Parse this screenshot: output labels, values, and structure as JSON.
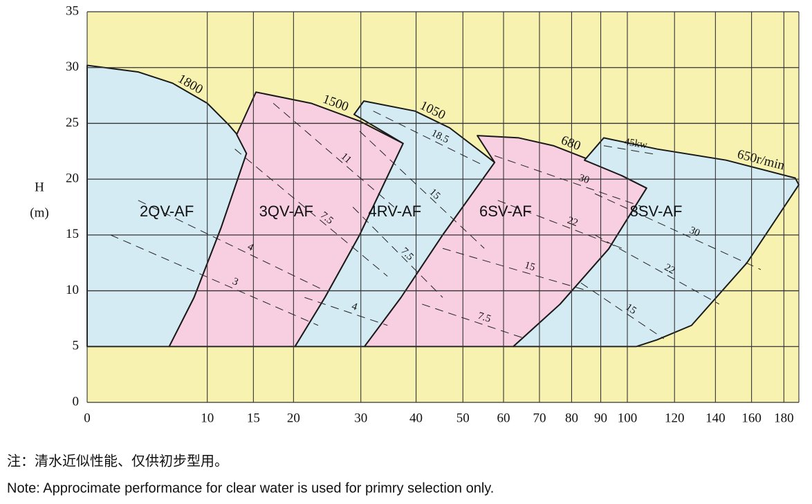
{
  "chart_data": {
    "type": "area",
    "y_label": "H",
    "y_unit": "(m)",
    "xlim": [
      0,
      190
    ],
    "ylim": [
      0,
      35
    ],
    "xticks": [
      0,
      10,
      15,
      20,
      30,
      40,
      50,
      60,
      70,
      80,
      90,
      100,
      120,
      140,
      160,
      180
    ],
    "yticks": [
      0,
      5,
      10,
      15,
      20,
      25,
      30,
      35
    ],
    "grid": true,
    "background": "#f8f2b0",
    "series": [
      {
        "name": "2QV-AF",
        "speed": "1800",
        "color": "#d5ebf3",
        "x": [
          0,
          3.8,
          6.7,
          10,
          12.2,
          13.8,
          14.2,
          11.4,
          8.7,
          6.4,
          0
        ],
        "y": [
          30.2,
          29.6,
          28.6,
          26.8,
          24.9,
          23.4,
          22.3,
          15.6,
          9.4,
          5,
          5
        ]
      },
      {
        "name": "3QV-AF",
        "speed": "1500",
        "color": "#f8cfe0",
        "x": [
          13.1,
          15.3,
          22.4,
          29.8,
          37.5,
          29.8,
          24.4,
          20.2,
          6.4,
          8.7,
          11.4,
          14.2
        ],
        "y": [
          24.0,
          27.8,
          26.8,
          25.2,
          23.2,
          15.0,
          9.4,
          5,
          5,
          9.4,
          15.6,
          22.3
        ]
      },
      {
        "name": "4RV-AF",
        "speed": "1050",
        "color": "#d5ebf3",
        "x": [
          28.9,
          30.5,
          39.8,
          47.0,
          53.4,
          57.7,
          45.5,
          37.1,
          30.6,
          20.2,
          24.4,
          29.8,
          37.5
        ],
        "y": [
          25.8,
          27.0,
          26.1,
          24.6,
          22.7,
          21.5,
          15.0,
          9.4,
          5,
          5,
          9.4,
          15.0,
          23.2
        ]
      },
      {
        "name": "6SV-AF",
        "speed": "680",
        "color": "#f8cfe0",
        "x": [
          53.4,
          64.1,
          74.2,
          85.4,
          98,
          107.8,
          92.9,
          76.3,
          62.6,
          30.6,
          37.1,
          45.5,
          57.7
        ],
        "y": [
          23.9,
          23.7,
          23.0,
          21.8,
          20.3,
          19.2,
          13.75,
          8.8,
          5,
          5,
          9.4,
          15.0,
          21.5
        ]
      },
      {
        "name": "8SV-AF",
        "speed": "650r/min",
        "color": "#d5ebf3",
        "x": [
          84.3,
          91.1,
          112.2,
          145.7,
          187.5,
          190,
          157.3,
          128,
          112.2,
          103.5,
          62.6,
          76.3,
          92.9,
          107.8,
          98
        ],
        "y": [
          21.7,
          23.7,
          22.7,
          21.7,
          20.1,
          19.5,
          12.5,
          6.9,
          5.6,
          5,
          5,
          8.8,
          13.75,
          19.2,
          20.3
        ]
      }
    ],
    "power_lines": [
      {
        "label": "11",
        "x": [
          17.4,
          35.8
        ],
        "y": [
          26.8,
          17.5
        ]
      },
      {
        "label": "7.5",
        "x": [
          12.9,
          34.6
        ],
        "y": [
          22.7,
          11.3
        ]
      },
      {
        "label": "4",
        "x": [
          3.78,
          24.4
        ],
        "y": [
          18.1,
          10.0
        ]
      },
      {
        "label": "3",
        "x": [
          1.66,
          23.4
        ],
        "y": [
          15.0,
          6.9
        ]
      },
      {
        "label": "18.5",
        "x": [
          32.1,
          55.1
        ],
        "y": [
          26.1,
          21.2
        ]
      },
      {
        "label": "15",
        "x": [
          29.8,
          55.1
        ],
        "y": [
          24.3,
          13.8
        ]
      },
      {
        "label": "7.5",
        "x": [
          28.7,
          45.5
        ],
        "y": [
          17.5,
          9.4
        ]
      },
      {
        "label": "4",
        "x": [
          21.5,
          34.6
        ],
        "y": [
          9.4,
          6.9
        ]
      },
      {
        "label": "30",
        "x": [
          57.7,
          106.4
        ],
        "y": [
          22.1,
          17.5
        ]
      },
      {
        "label": "22",
        "x": [
          58.5,
          98
        ],
        "y": [
          18.1,
          13.8
        ]
      },
      {
        "label": "15",
        "x": [
          45.5,
          85.4
        ],
        "y": [
          13.8,
          10.0
        ]
      },
      {
        "label": "7.5",
        "x": [
          41.2,
          66.0
        ],
        "y": [
          8.8,
          5.7
        ]
      },
      {
        "label": "45kw",
        "x": [
          91.1,
          112.2
        ],
        "y": [
          23.0,
          22.2
        ]
      },
      {
        "label": "30",
        "x": [
          87.9,
          165.5
        ],
        "y": [
          18.7,
          11.9
        ]
      },
      {
        "label": "22",
        "x": [
          87.9,
          142.0
        ],
        "y": [
          15.0,
          8.8
        ]
      },
      {
        "label": "15",
        "x": [
          83.1,
          115.2
        ],
        "y": [
          10.7,
          5.7
        ]
      }
    ],
    "notes": [
      "注：清水近似性能、仅供初步型用。",
      "Note: Approcimate performance for clear water is used for primry selection only."
    ]
  }
}
